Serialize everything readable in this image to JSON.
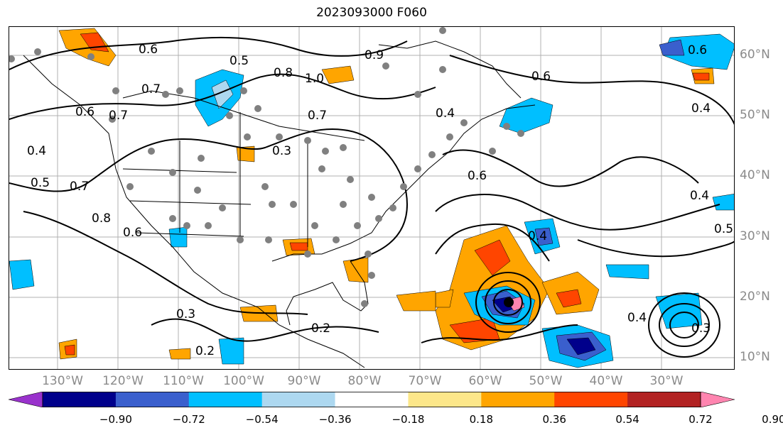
{
  "title": "2023093000 F060",
  "lat_labels": [
    "60°N",
    "50°N",
    "40°N",
    "30°N",
    "20°N",
    "10°N"
  ],
  "lon_labels": [
    "130°W",
    "120°W",
    "110°W",
    "100°W",
    "90°W",
    "80°W",
    "70°W",
    "60°W",
    "50°W",
    "40°W",
    "30°W"
  ],
  "colorbar": {
    "ticks": [
      "−0.90",
      "−0.72",
      "−0.54",
      "−0.36",
      "−0.18",
      "0.18",
      "0.36",
      "0.54",
      "0.72",
      "0.90"
    ],
    "colors": [
      "#9932cc",
      "#00008b",
      "#3a5fcd",
      "#00bfff",
      "#add8f0",
      "#ffffff",
      "#fce78a",
      "#ffa500",
      "#ff4500",
      "#b22222",
      "#ff85b0"
    ]
  },
  "contour_labels": [
    "0.6",
    "0.5",
    "0.8",
    "1.0",
    "0.7",
    "0.6",
    "0.7",
    "0.4",
    "0.6",
    "0.5",
    "0.4",
    "0.7",
    "0.8",
    "0.6",
    "0.9",
    "0.3",
    "0.6",
    "0.4",
    "0.6",
    "0.4",
    "0.3",
    "0.2",
    "0.2",
    "0.7",
    "0.4",
    "0.5",
    "0.3",
    "0.4"
  ]
}
